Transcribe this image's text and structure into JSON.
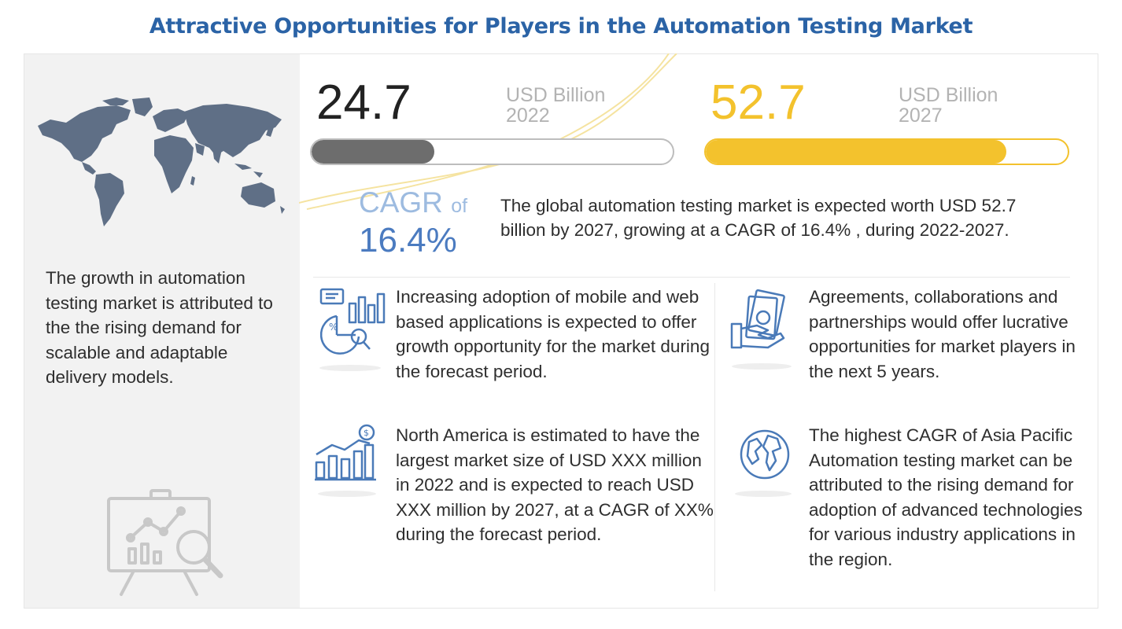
{
  "title": "Attractive Opportunities for Players in the Automation Testing Market",
  "left_panel": {
    "text": "The growth in automation testing market is attributed to the the rising demand for scalable and adaptable delivery models."
  },
  "market_2022": {
    "value": "24.7",
    "unit": "USD Billion",
    "year": "2022",
    "bar_fill_fraction": 0.34
  },
  "market_2027": {
    "value": "52.7",
    "unit": "USD Billion",
    "year": "2027",
    "bar_fill_fraction": 0.83
  },
  "cagr": {
    "label": "CAGR",
    "of": "of",
    "value": "16.4%"
  },
  "summary": "The global automation testing market is expected worth USD 52.7 billion by 2027, growing at a CAGR of 16.4% , during 2022-2027.",
  "insights": [
    {
      "icon": "analytics-icon",
      "text": "Increasing adoption of mobile and web based applications is expected to offer growth opportunity for the market during the forecast period."
    },
    {
      "icon": "handshake-money-icon",
      "text": "Agreements, collaborations and partnerships would offer lucrative opportunities for market players in the next 5 years."
    },
    {
      "icon": "growth-chart-icon",
      "text": "North America is estimated to have the largest market size of USD XXX million in 2022 and is expected to reach USD XXX million by 2027, at a CAGR of XX% during the forecast period."
    },
    {
      "icon": "globe-icon",
      "text": "The highest CAGR of Asia Pacific Automation testing market can be attributed to the rising demand for adoption of advanced technologies for various industry applications in the region."
    }
  ],
  "colors": {
    "title": "#2b63a6",
    "accent_yellow": "#f3c22d",
    "bar_gray": "#6d6d6d",
    "cagr_blue": "#4b7bc0",
    "icon_blue": "#4a7ab8"
  }
}
